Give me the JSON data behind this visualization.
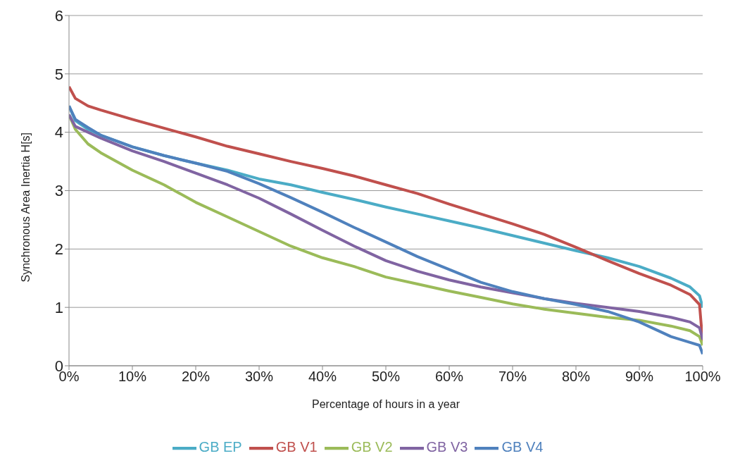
{
  "chart_data": {
    "type": "line",
    "xlabel": "Percentage of hours  in a year",
    "ylabel": "Synchronous Area Inertia H[s]",
    "x": [
      0,
      1,
      3,
      5,
      10,
      15,
      20,
      25,
      30,
      35,
      40,
      45,
      50,
      55,
      60,
      65,
      70,
      75,
      80,
      85,
      90,
      95,
      98,
      99.5,
      100
    ],
    "series": [
      {
        "name": "GB EP",
        "color": "#4bacc6",
        "values": [
          4.45,
          4.2,
          4.05,
          3.95,
          3.75,
          3.6,
          3.47,
          3.35,
          3.2,
          3.1,
          2.97,
          2.85,
          2.72,
          2.6,
          2.48,
          2.36,
          2.23,
          2.1,
          1.97,
          1.85,
          1.7,
          1.5,
          1.35,
          1.2,
          1.0
        ]
      },
      {
        "name": "GB V1",
        "color": "#c0504d",
        "values": [
          4.78,
          4.58,
          4.45,
          4.38,
          4.22,
          4.07,
          3.92,
          3.76,
          3.63,
          3.5,
          3.38,
          3.25,
          3.1,
          2.95,
          2.77,
          2.6,
          2.43,
          2.25,
          2.03,
          1.8,
          1.58,
          1.38,
          1.22,
          1.05,
          0.4
        ]
      },
      {
        "name": "GB V2",
        "color": "#9bbb59",
        "values": [
          4.3,
          4.05,
          3.8,
          3.65,
          3.35,
          3.1,
          2.8,
          2.55,
          2.3,
          2.05,
          1.85,
          1.7,
          1.52,
          1.4,
          1.28,
          1.17,
          1.06,
          0.97,
          0.9,
          0.83,
          0.78,
          0.68,
          0.6,
          0.5,
          0.35
        ]
      },
      {
        "name": "GB V3",
        "color": "#8064a2",
        "values": [
          4.3,
          4.1,
          4.0,
          3.9,
          3.68,
          3.5,
          3.3,
          3.1,
          2.87,
          2.6,
          2.32,
          2.05,
          1.8,
          1.62,
          1.47,
          1.35,
          1.25,
          1.15,
          1.07,
          1.0,
          0.93,
          0.83,
          0.75,
          0.65,
          0.45
        ]
      },
      {
        "name": "GB V4",
        "color": "#4f81bd",
        "values": [
          4.45,
          4.22,
          4.08,
          3.95,
          3.75,
          3.6,
          3.47,
          3.33,
          3.12,
          2.88,
          2.63,
          2.37,
          2.12,
          1.87,
          1.65,
          1.43,
          1.27,
          1.15,
          1.05,
          0.93,
          0.75,
          0.5,
          0.4,
          0.35,
          0.2
        ]
      }
    ],
    "xlim": [
      0,
      100
    ],
    "xticks": [
      {
        "value": 0,
        "label": "0%"
      },
      {
        "value": 10,
        "label": "10%"
      },
      {
        "value": 20,
        "label": "20%"
      },
      {
        "value": 30,
        "label": "30%"
      },
      {
        "value": 40,
        "label": "40%"
      },
      {
        "value": 50,
        "label": "50%"
      },
      {
        "value": 60,
        "label": "60%"
      },
      {
        "value": 70,
        "label": "70%"
      },
      {
        "value": 80,
        "label": "80%"
      },
      {
        "value": 90,
        "label": "90%"
      },
      {
        "value": 100,
        "label": "100%"
      }
    ],
    "ylim": [
      0,
      6
    ],
    "yticks": [
      0,
      1,
      2,
      3,
      4,
      5,
      6
    ],
    "grid": "y",
    "legend": "bottom",
    "marker": "none",
    "line_style": "solid"
  }
}
